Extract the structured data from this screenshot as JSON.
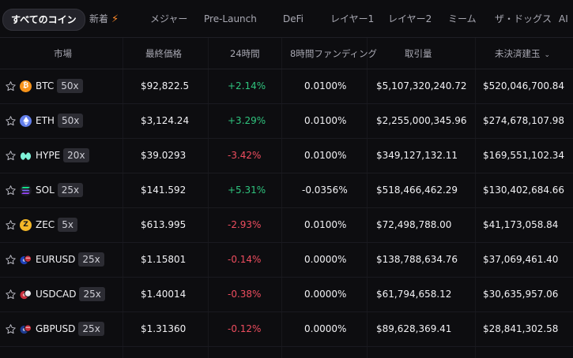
{
  "tabs": [
    {
      "label": "すべてのコイン",
      "active": true
    },
    {
      "label": "新着",
      "badge": "⚡"
    },
    {
      "label": "メジャー"
    },
    {
      "label": "Pre-Launch"
    },
    {
      "label": "DeFi"
    },
    {
      "label": "レイヤー1"
    },
    {
      "label": "レイヤー2"
    },
    {
      "label": "ミーム"
    },
    {
      "label": "ザ・ドッグス"
    },
    {
      "label": "AI"
    }
  ],
  "columns": {
    "market": "市場",
    "last_price": "最終価格",
    "change_24h": "24時間",
    "funding_8h": "8時間ファンディング",
    "volume": "取引量",
    "open_interest": "未決済建玉",
    "sort_arrow": "⌄"
  },
  "colors": {
    "positive": "#2fc47e",
    "negative": "#ee4d5f",
    "btc": "#f7931a",
    "eth": "#627eea",
    "hype": "#7ff2d8",
    "sol": "#9945ff",
    "zec": "#f4b728"
  },
  "rows": [
    {
      "symbol": "BTC",
      "icon": "btc-icon",
      "leverage": "50x",
      "price": "$92,822.5",
      "change": "+2.14%",
      "direction": "up",
      "funding": "0.0100%",
      "volume": "$5,107,320,240.72",
      "oi": "$520,046,700.84"
    },
    {
      "symbol": "ETH",
      "icon": "eth-icon",
      "leverage": "50x",
      "price": "$3,124.24",
      "change": "+3.29%",
      "direction": "up",
      "funding": "0.0100%",
      "volume": "$2,255,000,345.96",
      "oi": "$274,678,107.98"
    },
    {
      "symbol": "HYPE",
      "icon": "hype-icon",
      "leverage": "20x",
      "price": "$39.0293",
      "change": "-3.42%",
      "direction": "down",
      "funding": "0.0100%",
      "volume": "$349,127,132.11",
      "oi": "$169,551,102.34"
    },
    {
      "symbol": "SOL",
      "icon": "sol-icon",
      "leverage": "25x",
      "price": "$141.592",
      "change": "+5.31%",
      "direction": "up",
      "funding": "-0.0356%",
      "volume": "$518,466,462.29",
      "oi": "$130,402,684.66"
    },
    {
      "symbol": "ZEC",
      "icon": "zec-icon",
      "leverage": "5x",
      "price": "$613.995",
      "change": "-2.93%",
      "direction": "down",
      "funding": "0.0100%",
      "volume": "$72,498,788.00",
      "oi": "$41,173,058.84"
    },
    {
      "symbol": "EURUSD",
      "icon": "eur-usd-flag-icon",
      "leverage": "25x",
      "price": "$1.15801",
      "change": "-0.14%",
      "direction": "down",
      "funding": "0.0000%",
      "volume": "$138,788,634.76",
      "oi": "$37,069,461.40"
    },
    {
      "symbol": "USDCAD",
      "icon": "usd-cad-flag-icon",
      "leverage": "25x",
      "price": "$1.40014",
      "change": "-0.38%",
      "direction": "down",
      "funding": "0.0000%",
      "volume": "$61,794,658.12",
      "oi": "$30,635,957.06"
    },
    {
      "symbol": "GBPUSD",
      "icon": "gbp-usd-flag-icon",
      "leverage": "25x",
      "price": "$1.31360",
      "change": "-0.12%",
      "direction": "down",
      "funding": "0.0000%",
      "volume": "$89,628,369.41",
      "oi": "$28,841,302.58"
    }
  ]
}
